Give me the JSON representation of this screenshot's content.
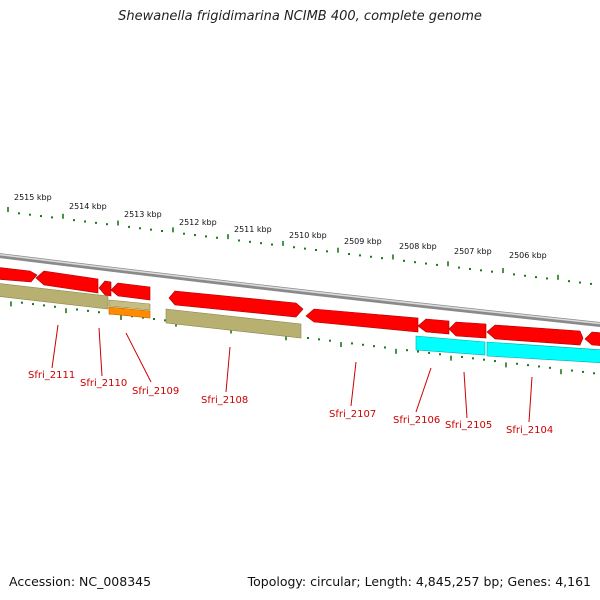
{
  "title": "Shewanella frigidimarina NCIMB 400, complete genome",
  "accession": "Accession: NC_008345",
  "summary": "Topology: circular; Length: 4,845,257 bp; Genes: 4,161",
  "colors": {
    "backbone": "#8a8a8a",
    "forward_gene": "#ee0000",
    "reverse_gene": "#ff0000",
    "khaki": "#b8b070",
    "orange": "#ff8c00",
    "cyan": "#00ffff",
    "tick": "#1a7a1a",
    "label": "#cc0000"
  },
  "ruler": {
    "unit": "kbp",
    "positions_kbp": [
      2515,
      2514,
      2513,
      2512,
      2511,
      2510,
      2509,
      2508,
      2507,
      2506
    ],
    "labels": [
      "2515 kbp",
      "2514 kbp",
      "2513 kbp",
      "2512 kbp",
      "2511 kbp",
      "2510 kbp",
      "2509 kbp",
      "2508 kbp",
      "2507 kbp",
      "2506 kbp"
    ]
  },
  "gene_labels": [
    "Sfri_2111",
    "Sfri_2110",
    "Sfri_2109",
    "Sfri_2108",
    "Sfri_2107",
    "Sfri_2106",
    "Sfri_2105",
    "Sfri_2104"
  ]
}
